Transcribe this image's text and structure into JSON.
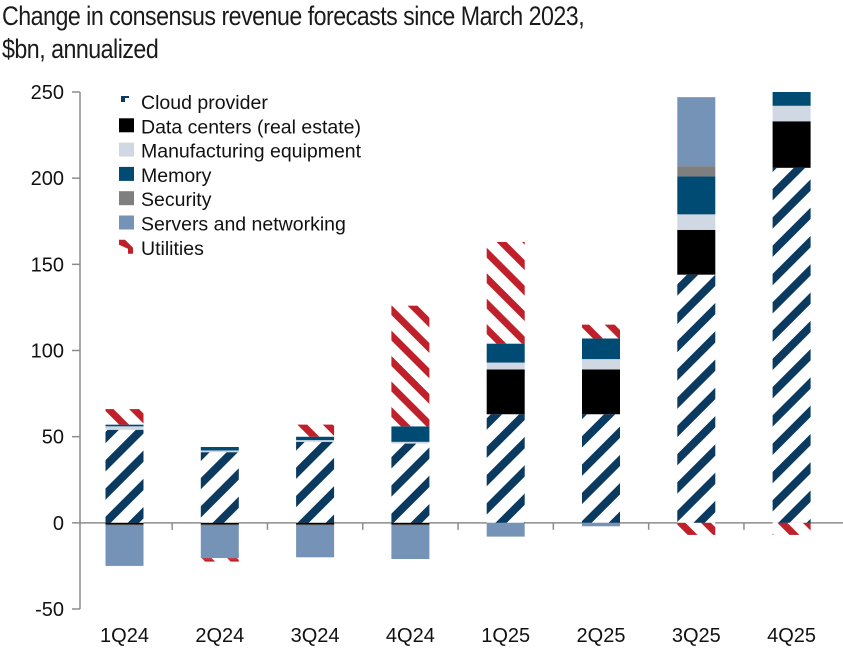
{
  "chart_data": {
    "type": "bar",
    "stacked": true,
    "title": "Change in consensus revenue forecasts since March 2023, $bn, annualized",
    "title_lines": [
      "Change in consensus revenue forecasts since March 2023,",
      "$bn, annualized"
    ],
    "xlabel": "",
    "ylabel": "",
    "ylim": [
      -50,
      250
    ],
    "yticks": [
      250,
      200,
      150,
      100,
      50,
      0,
      -50
    ],
    "grid": false,
    "legend_position": "top-left",
    "categories": [
      "1Q24",
      "2Q24",
      "3Q24",
      "4Q24",
      "1Q25",
      "2Q25",
      "3Q25",
      "4Q25"
    ],
    "series": [
      {
        "name": "Cloud provider",
        "color": "#0B3A61",
        "pattern": "diagonal-hatch-up",
        "values": [
          54,
          41,
          47,
          46,
          63,
          63,
          144,
          206
        ]
      },
      {
        "name": "Data centers (real estate)",
        "color": "#000000",
        "pattern": "solid",
        "values": [
          -1,
          -1,
          -1,
          -1,
          26,
          26,
          26,
          27
        ]
      },
      {
        "name": "Manufacturing equipment",
        "color": "#D0D8E4",
        "pattern": "solid",
        "values": [
          2,
          1,
          1,
          1,
          4,
          6,
          9,
          9
        ]
      },
      {
        "name": "Memory",
        "color": "#004B74",
        "pattern": "solid",
        "values": [
          1,
          2,
          2,
          9,
          11,
          12,
          22,
          8
        ]
      },
      {
        "name": "Security",
        "color": "#7F7F7F",
        "pattern": "solid",
        "values": [
          -0.5,
          -0.5,
          -0.5,
          -0.5,
          0,
          0,
          6,
          0
        ]
      },
      {
        "name": "Servers and networking",
        "color": "#7493B6",
        "pattern": "solid",
        "values": [
          -23.5,
          -19,
          -18.5,
          -19.5,
          -8,
          -2,
          40,
          0
        ]
      },
      {
        "name": "Utilities",
        "color": "#C0202A",
        "pattern": "diagonal-hatch-down",
        "values": [
          9,
          -1,
          7,
          70,
          59,
          8,
          0,
          -7
        ]
      }
    ],
    "utilities_negative_extra": [
      0,
      -1,
      0,
      0,
      0,
      0,
      -7,
      0
    ]
  }
}
